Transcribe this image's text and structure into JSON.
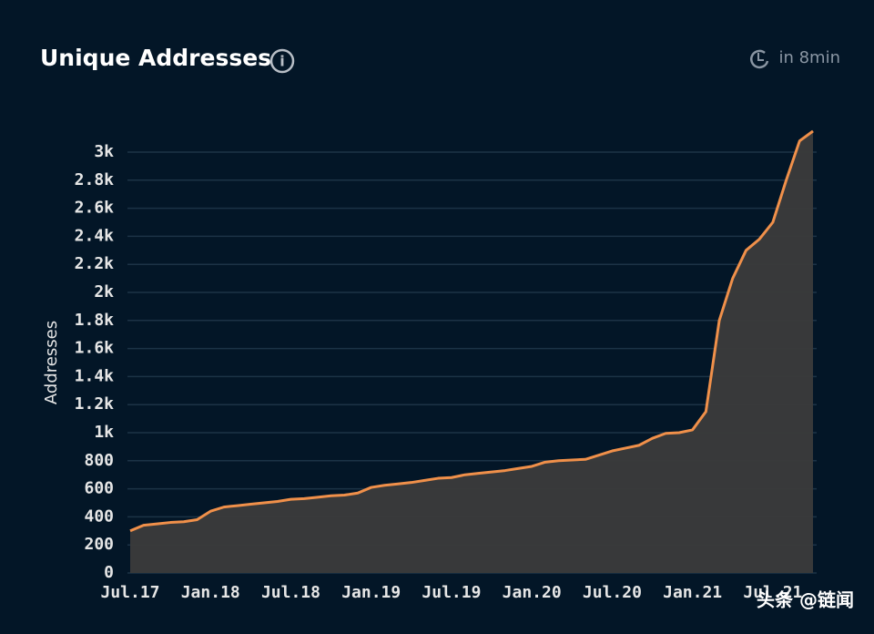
{
  "header": {
    "title": "Unique Addresses",
    "refresh": "in 8min"
  },
  "watermark": "头条 @链闻",
  "chart_data": {
    "type": "area",
    "y_label": "Addresses",
    "categories": [
      "Jul.17",
      null,
      null,
      null,
      null,
      null,
      "Jan.18",
      null,
      null,
      null,
      null,
      null,
      "Jul.18",
      null,
      null,
      null,
      null,
      null,
      "Jan.19",
      null,
      null,
      null,
      null,
      null,
      "Jul.19",
      null,
      null,
      null,
      null,
      null,
      "Jan.20",
      null,
      null,
      null,
      null,
      null,
      "Jul.20",
      null,
      null,
      null,
      null,
      null,
      "Jan.21",
      null,
      null,
      null,
      null,
      null,
      "Jul.21",
      null,
      null,
      null
    ],
    "series": [
      {
        "name": "Addresses",
        "color": "#f0904a",
        "fill": "#3b3b3b",
        "values": [
          300,
          340,
          350,
          360,
          365,
          380,
          440,
          470,
          480,
          490,
          500,
          510,
          525,
          530,
          540,
          550,
          555,
          570,
          610,
          625,
          635,
          645,
          660,
          675,
          680,
          700,
          710,
          720,
          730,
          745,
          760,
          790,
          800,
          805,
          810,
          840,
          870,
          890,
          910,
          960,
          995,
          1000,
          1020,
          1150,
          1800,
          2100,
          2300,
          2380,
          2500,
          2800,
          3080,
          3150
        ]
      }
    ],
    "ylim": [
      0,
      3000
    ],
    "yticks": [
      0,
      200,
      400,
      600,
      800,
      {
        "value": 1000,
        "label": "1k"
      },
      {
        "value": 1200,
        "label": "1.2k"
      },
      {
        "value": 1400,
        "label": "1.4k"
      },
      {
        "value": 1600,
        "label": "1.6k"
      },
      {
        "value": 1800,
        "label": "1.8k"
      },
      {
        "value": 2000,
        "label": "2k"
      },
      {
        "value": 2200,
        "label": "2.2k"
      },
      {
        "value": 2400,
        "label": "2.4k"
      },
      {
        "value": 2600,
        "label": "2.6k"
      },
      {
        "value": 2800,
        "label": "2.8k"
      },
      {
        "value": 3000,
        "label": "3k"
      }
    ],
    "grid": true
  }
}
